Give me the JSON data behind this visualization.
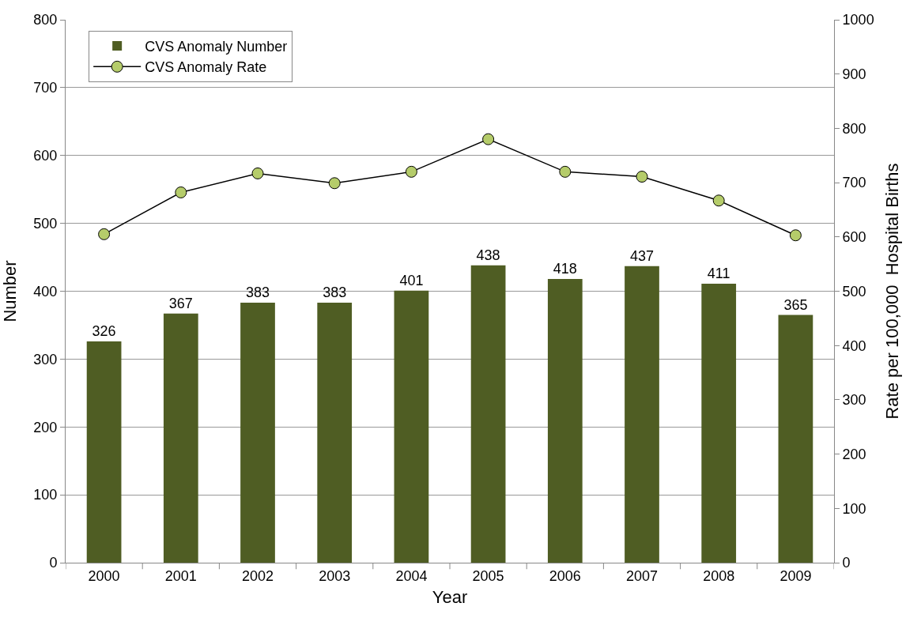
{
  "chart_data": {
    "type": "bar",
    "xlabel": "Year",
    "ylabel": "Number",
    "y2label": "Rate per 100,000  Hospital Births",
    "categories": [
      "2000",
      "2001",
      "2002",
      "2003",
      "2004",
      "2005",
      "2006",
      "2007",
      "2008",
      "2009"
    ],
    "series": [
      {
        "name": "CVS Anomaly Number",
        "color": "#4f5d23",
        "values": [
          326,
          367,
          383,
          383,
          401,
          438,
          418,
          437,
          411,
          365
        ],
        "value_labels": [
          "326",
          "367",
          "383",
          "383",
          "401",
          "438",
          "418",
          "437",
          "411",
          "365"
        ]
      },
      {
        "name": "CVS Anomaly Rate",
        "type": "line",
        "axis": "y2",
        "color": "#b5cc6a",
        "marker": "circle",
        "values": [
          605,
          682,
          717,
          699,
          720,
          780,
          720,
          711,
          667,
          603
        ]
      }
    ],
    "ylim": [
      0,
      800
    ],
    "yticks": [
      0,
      100,
      200,
      300,
      400,
      500,
      600,
      700,
      800
    ],
    "y2lim": [
      0,
      1000
    ],
    "y2ticks": [
      0,
      100,
      200,
      300,
      400,
      500,
      600,
      700,
      800,
      900,
      1000
    ],
    "grid": "y",
    "legend": "top left"
  }
}
